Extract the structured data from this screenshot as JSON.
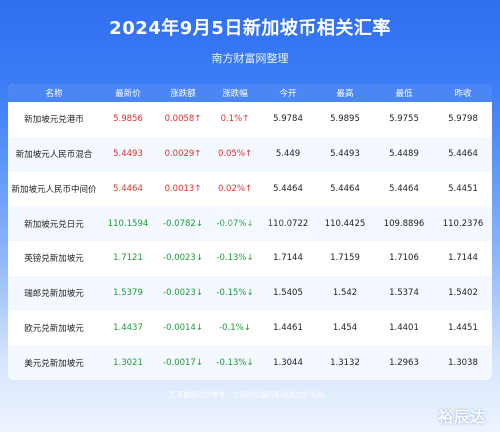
{
  "header": {
    "title": "2024年9月5日新加坡币相关汇率",
    "subtitle": "南方财富网整理"
  },
  "table": {
    "columns": [
      "名称",
      "最新价",
      "涨跌额",
      "涨跌幅",
      "今开",
      "最高",
      "最低",
      "昨收"
    ],
    "rows": [
      {
        "name": "新加坡元兑港币",
        "latest": "5.9856",
        "change": "0.0058↑",
        "pct": "0.1%↑",
        "open": "5.9784",
        "high": "5.9895",
        "low": "5.9755",
        "prev": "5.9798",
        "dir": "up"
      },
      {
        "name": "新加坡元人民币混合",
        "latest": "5.4493",
        "change": "0.0029↑",
        "pct": "0.05%↑",
        "open": "5.449",
        "high": "5.4493",
        "low": "5.4489",
        "prev": "5.4464",
        "dir": "up"
      },
      {
        "name": "新加坡元人民币中间价",
        "latest": "5.4464",
        "change": "0.0013↑",
        "pct": "0.02%↑",
        "open": "5.4464",
        "high": "5.4464",
        "low": "5.4464",
        "prev": "5.4451",
        "dir": "up"
      },
      {
        "name": "新加坡元兑日元",
        "latest": "110.1594",
        "change": "-0.0782↓",
        "pct": "-0.07%↓",
        "open": "110.0722",
        "high": "110.4425",
        "low": "109.8896",
        "prev": "110.2376",
        "dir": "down"
      },
      {
        "name": "英镑兑新加坡元",
        "latest": "1.7121",
        "change": "-0.0023↓",
        "pct": "-0.13%↓",
        "open": "1.7144",
        "high": "1.7159",
        "low": "1.7106",
        "prev": "1.7144",
        "dir": "down"
      },
      {
        "name": "瑞郎兑新加坡元",
        "latest": "1.5379",
        "change": "-0.0023↓",
        "pct": "-0.15%↓",
        "open": "1.5405",
        "high": "1.542",
        "low": "1.5374",
        "prev": "1.5402",
        "dir": "down"
      },
      {
        "name": "欧元兑新加坡元",
        "latest": "1.4437",
        "change": "-0.0014↓",
        "pct": "-0.1%↓",
        "open": "1.4461",
        "high": "1.454",
        "low": "1.4401",
        "prev": "1.4451",
        "dir": "down"
      },
      {
        "name": "美元兑新加坡元",
        "latest": "1.3021",
        "change": "-0.0017↓",
        "pct": "-0.13%↓",
        "open": "1.3044",
        "high": "1.3132",
        "low": "1.2963",
        "prev": "1.3038",
        "dir": "down"
      }
    ]
  },
  "footer": {
    "note": "汇率数据仅供参考，交易时以银行柜台成交价为准。",
    "logo": "裕辰达"
  },
  "watermark": {
    "text_cn": "南方财富网",
    "text_en": "southmoney.com"
  },
  "colors": {
    "up": "#e33030",
    "down": "#1f9a3a",
    "header_bg": "#4a87f5",
    "page_bg": "#3d7df6"
  }
}
